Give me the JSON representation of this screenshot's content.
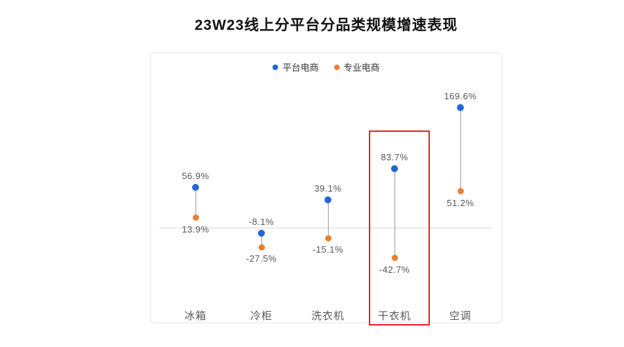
{
  "chart_data": {
    "type": "scatter",
    "subtype": "dumbbell",
    "title": "23W23线上分平台分品类规模增速表现",
    "categories": [
      "冰箱",
      "冷柜",
      "洗衣机",
      "干衣机",
      "空调"
    ],
    "series": [
      {
        "name": "平台电商",
        "color": "#2069d0",
        "values": [
          56.9,
          -8.1,
          39.1,
          83.7,
          169.6
        ],
        "labels": [
          "56.9%",
          "-8.1%",
          "39.1%",
          "83.7%",
          "169.6%"
        ]
      },
      {
        "name": "专业电商",
        "color": "#ed7d31",
        "values": [
          13.9,
          -27.5,
          -15.1,
          -42.7,
          51.2
        ],
        "labels": [
          "13.9%",
          "-27.5%",
          "-15.1%",
          "-42.7%",
          "51.2%"
        ]
      }
    ],
    "ylabel": "",
    "xlabel": "",
    "ylim": [
      -140,
      246
    ],
    "grid": false,
    "legend_position": "top-center",
    "highlight": {
      "category": "干衣机",
      "color": "#ed1f24"
    }
  },
  "colors": {
    "platform_blue": "#2069d0",
    "specialty_orange": "#ed7d31",
    "highlight_red": "#ed1f24",
    "zero_line_gray": "#d9d9d9",
    "connector_gray": "#9b9b9b",
    "border_gray": "#f1f1f1"
  }
}
